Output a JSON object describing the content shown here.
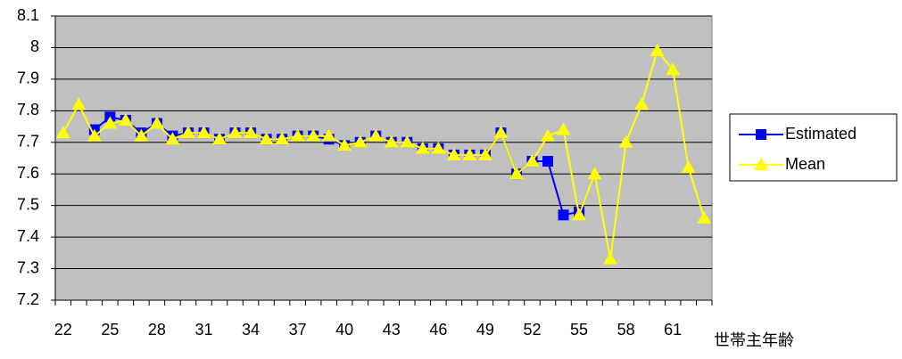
{
  "chart_data": {
    "type": "line",
    "x_label": "世帯主年齢",
    "categories": [
      "22",
      null,
      null,
      "25",
      null,
      null,
      "28",
      null,
      null,
      "31",
      null,
      null,
      "34",
      null,
      null,
      "37",
      null,
      null,
      "40",
      null,
      null,
      "43",
      null,
      null,
      "46",
      null,
      null,
      "49",
      null,
      null,
      "52",
      null,
      null,
      "55",
      null,
      null,
      "58",
      null,
      null,
      "61",
      null,
      null
    ],
    "series": [
      {
        "name": "Estimated",
        "color": "#0000ff",
        "marker": "square",
        "values": [
          null,
          null,
          7.74,
          7.78,
          7.77,
          7.73,
          7.76,
          7.72,
          7.73,
          7.73,
          7.71,
          7.73,
          7.73,
          7.71,
          7.71,
          7.72,
          7.72,
          7.71,
          7.69,
          7.7,
          7.72,
          7.7,
          7.7,
          7.68,
          7.68,
          7.66,
          7.66,
          7.66,
          7.73,
          7.6,
          7.64,
          7.64,
          7.47,
          7.48,
          null,
          null,
          null,
          null,
          null,
          null,
          null,
          null
        ]
      },
      {
        "name": "Mean",
        "color": "#ffff00",
        "marker": "triangle",
        "values": [
          7.73,
          7.82,
          7.72,
          7.76,
          7.77,
          7.72,
          7.76,
          7.71,
          7.73,
          7.73,
          7.71,
          7.73,
          7.73,
          7.71,
          7.71,
          7.72,
          7.72,
          7.72,
          7.69,
          7.7,
          7.72,
          7.7,
          7.7,
          7.68,
          7.68,
          7.66,
          7.66,
          7.66,
          7.73,
          7.6,
          7.64,
          7.72,
          7.74,
          7.47,
          7.6,
          7.33,
          7.7,
          7.82,
          7.99,
          7.93,
          7.62,
          7.46
        ]
      }
    ],
    "ylim": [
      7.2,
      8.1
    ],
    "yticks": [
      7.2,
      7.3,
      7.4,
      7.5,
      7.6,
      7.7,
      7.8,
      7.9,
      8,
      8.1
    ],
    "grid": true,
    "legend": "right",
    "plot_background": "#c0c0c0"
  }
}
